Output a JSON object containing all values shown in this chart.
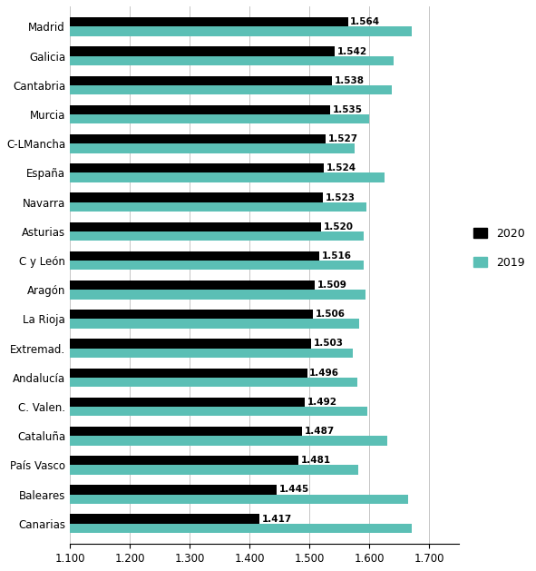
{
  "categories": [
    "Madrid",
    "Galicia",
    "Cantabria",
    "Murcia",
    "C-LMancha",
    "España",
    "Navarra",
    "Asturias",
    "C y León",
    "Aragón",
    "La Rioja",
    "Extremad.",
    "Andalucía",
    "C. Valen.",
    "Cataluña",
    "País Vasco",
    "Baleares",
    "Canarias"
  ],
  "values_2020": [
    1.564,
    1.542,
    1.538,
    1.535,
    1.527,
    1.524,
    1.523,
    1.52,
    1.516,
    1.509,
    1.506,
    1.503,
    1.496,
    1.492,
    1.487,
    1.481,
    1.445,
    1.417
  ],
  "values_2019": [
    1.67,
    1.64,
    1.638,
    1.6,
    1.575,
    1.625,
    1.595,
    1.59,
    1.59,
    1.594,
    1.583,
    1.572,
    1.58,
    1.597,
    1.63,
    1.582,
    1.665,
    1.67
  ],
  "color_2020": "#000000",
  "color_2019": "#5bbfb5",
  "xlim_left": 1.1,
  "xlim_right": 1.75,
  "xticks": [
    1.1,
    1.2,
    1.3,
    1.4,
    1.5,
    1.6,
    1.7
  ],
  "xtick_labels": [
    "1.100",
    "1.200",
    "1.300",
    "1.400",
    "1.500",
    "1.600",
    "1.700"
  ],
  "legend_2020": "2020",
  "legend_2019": "2019",
  "bar_height": 0.32,
  "label_fontsize": 8.5,
  "tick_fontsize": 8.5,
  "value_fontsize": 7.5,
  "legend_fontsize": 9
}
